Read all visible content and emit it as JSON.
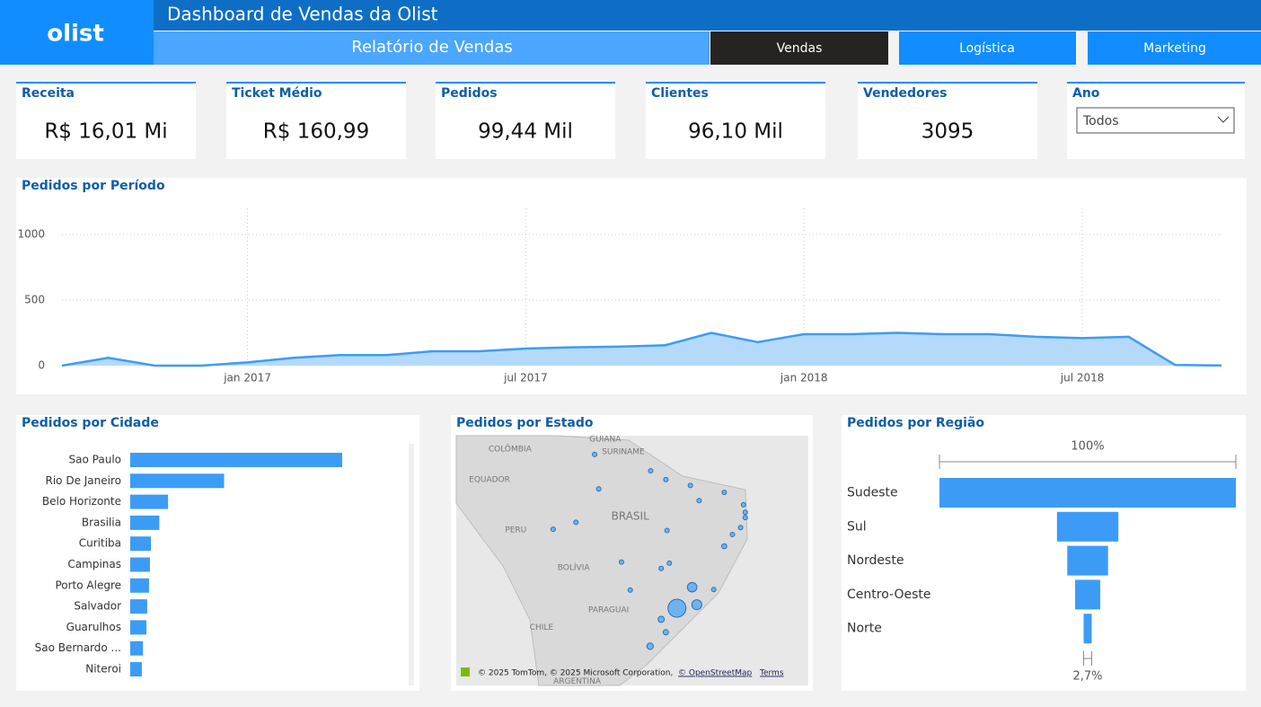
{
  "header": {
    "logo": "olist",
    "title": "Dashboard de Vendas da Olist",
    "subtitle": "Relatório de Vendas",
    "tabs": [
      "Vendas",
      "Logística",
      "Marketing"
    ]
  },
  "kpis": [
    {
      "label": "Receita",
      "value": "R$ 16,01 Mi"
    },
    {
      "label": "Ticket Médio",
      "value": "R$ 160,99"
    },
    {
      "label": "Pedidos",
      "value": "99,44 Mil"
    },
    {
      "label": "Clientes",
      "value": "96,10 Mil"
    },
    {
      "label": "Vendedores",
      "value": "3095"
    }
  ],
  "filter": {
    "label": "Ano",
    "value": "Todos"
  },
  "chart_data": [
    {
      "type": "line",
      "title": "Pedidos por Período",
      "x": [
        "2016-09",
        "2016-10",
        "2016-11",
        "2016-12",
        "2017-01",
        "2017-02",
        "2017-03",
        "2017-04",
        "2017-05",
        "2017-06",
        "2017-07",
        "2017-08",
        "2017-09",
        "2017-10",
        "2017-11",
        "2017-12",
        "2018-01",
        "2018-02",
        "2018-03",
        "2018-04",
        "2018-05",
        "2018-06",
        "2018-07",
        "2018-08",
        "2018-09",
        "2018-10"
      ],
      "values": [
        0,
        60,
        0,
        0,
        25,
        60,
        80,
        80,
        110,
        110,
        130,
        140,
        145,
        155,
        250,
        180,
        240,
        240,
        250,
        240,
        240,
        220,
        210,
        220,
        5,
        1
      ],
      "color": "#3c9cf5",
      "xlim": [
        "2016-09",
        "2018-10"
      ],
      "xticks": [
        {
          "value": "2017-01",
          "label": "jan 2017"
        },
        {
          "value": "2017-07",
          "label": "jul 2017"
        },
        {
          "value": "2018-01",
          "label": "jan 2018"
        },
        {
          "value": "2018-07",
          "label": "jul 2018"
        }
      ],
      "ylim": [
        0,
        1200
      ],
      "yticks": [
        0,
        500,
        1000
      ],
      "grid": true
    },
    {
      "type": "bar",
      "orientation": "horizontal",
      "title": "Pedidos por Cidade",
      "categories": [
        "Sao Paulo",
        "Rio De Janeiro",
        "Belo Horizonte",
        "Brasilia",
        "Curitiba",
        "Campinas",
        "Porto Alegre",
        "Salvador",
        "Guarulhos",
        "Sao Bernardo ...",
        "Niteroi"
      ],
      "values": [
        15540,
        6882,
        2773,
        2131,
        1521,
        1444,
        1379,
        1245,
        1189,
        938,
        849
      ],
      "color": "#3c9cf5"
    },
    {
      "type": "bubble-map",
      "title": "Pedidos por Estado",
      "lon": [
        -46.6,
        -43.2,
        -44,
        -51.2,
        -49.3,
        -48.5,
        -38.5,
        -47.9,
        -40.3,
        -49.3,
        -34.9,
        -38.5,
        -48.5,
        -56.1,
        -44.3,
        -54.6,
        -34.9,
        -42.8,
        -35.2,
        -35.7,
        -37.1,
        -48.3,
        -63.9,
        -60,
        -67.8,
        -51.1,
        -60.7
      ],
      "lat": [
        -23.5,
        -22.9,
        -19.9,
        -30,
        -25.4,
        -27.6,
        -12.9,
        -15.8,
        -20.3,
        -16.7,
        -8,
        -3.7,
        -1.5,
        -15.6,
        -2.5,
        -20.4,
        -7.1,
        -5.1,
        -5.8,
        -9.7,
        -10.9,
        -10.2,
        -8.8,
        -3.1,
        -10,
        0,
        2.8
      ],
      "values": [
        41746,
        12852,
        11635,
        5466,
        5045,
        3637,
        3380,
        2140,
        2033,
        2020,
        1652,
        1336,
        975,
        907,
        747,
        715,
        536,
        495,
        485,
        413,
        350,
        280,
        253,
        148,
        81,
        68,
        46
      ],
      "color": "#5aabf5",
      "xlim": [
        -84.4,
        -24.1
      ],
      "ylim": [
        -36.7,
        6.0
      ],
      "labels": [
        {
          "text": "COLÔMBIA",
          "lon": -75.2,
          "lat": 3.7
        },
        {
          "text": "GUIANA",
          "lon": -58.9,
          "lat": 5.4
        },
        {
          "text": "SURINAME",
          "lon": -55.8,
          "lat": 3.2
        },
        {
          "text": "EQUADOR",
          "lon": -78.7,
          "lat": -1.5
        },
        {
          "text": "PERU",
          "lon": -74.2,
          "lat": -10.1
        },
        {
          "text": "BRASIL",
          "lon": -54.6,
          "lat": -7.8
        },
        {
          "text": "BOLÍVIA",
          "lon": -64.3,
          "lat": -16.6
        },
        {
          "text": "PARAGUAI",
          "lon": -58.3,
          "lat": -23.8
        },
        {
          "text": "CHILE",
          "lon": -69.8,
          "lat": -26.8
        },
        {
          "text": "ARGENTINA",
          "lon": -63.7,
          "lat": -36.0
        }
      ],
      "attribution": [
        "© 2025 TomTom, © 2025 Microsoft Corporation,",
        "© OpenStreetMap",
        "Terms"
      ]
    },
    {
      "type": "funnel",
      "title": "Pedidos por Região",
      "categories": [
        "Sudeste",
        "Sul",
        "Nordeste",
        "Centro-Oeste",
        "Norte"
      ],
      "values": [
        68266,
        14148,
        9394,
        5782,
        1860
      ],
      "top_label": "100%",
      "bottom_label": "2,7%",
      "color": "#3c9cf5"
    }
  ]
}
